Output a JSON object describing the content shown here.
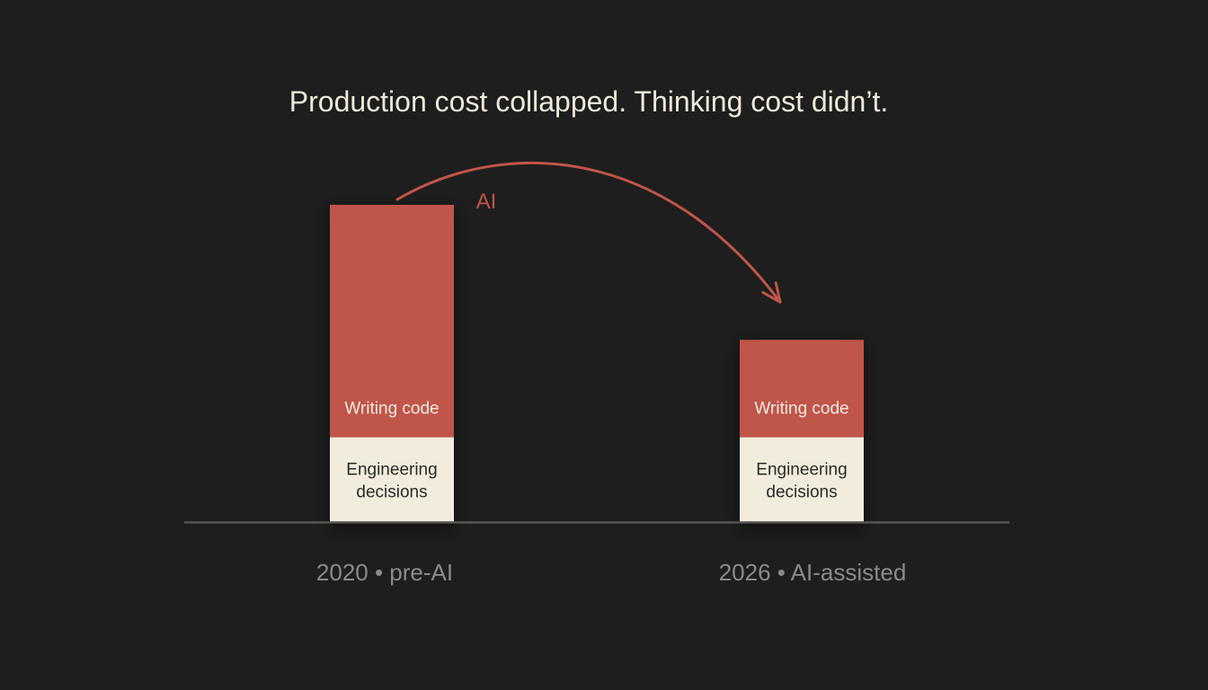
{
  "chart_data": {
    "type": "bar",
    "stacked": true,
    "title": "Production cost collapped. Thinking cost didn’t.",
    "categories": [
      "2020 • pre-AI",
      "2026 • AI-assisted"
    ],
    "series": [
      {
        "name": "Engineering\ndecisions",
        "values": [
          27,
          27
        ]
      },
      {
        "name": "Writing code",
        "values": [
          74,
          31
        ]
      }
    ],
    "series_colors": [
      "#f1ecdc",
      "#c0554a"
    ],
    "segment_text_colors": [
      "#2a2a2a",
      "#f7ece6"
    ],
    "annotation": {
      "label": "AI",
      "color": "#c0554a",
      "from_category": 0,
      "to_category": 1
    },
    "ylim": [
      0,
      101
    ],
    "grid": false,
    "axis_color": "#555555",
    "legend": "none"
  }
}
